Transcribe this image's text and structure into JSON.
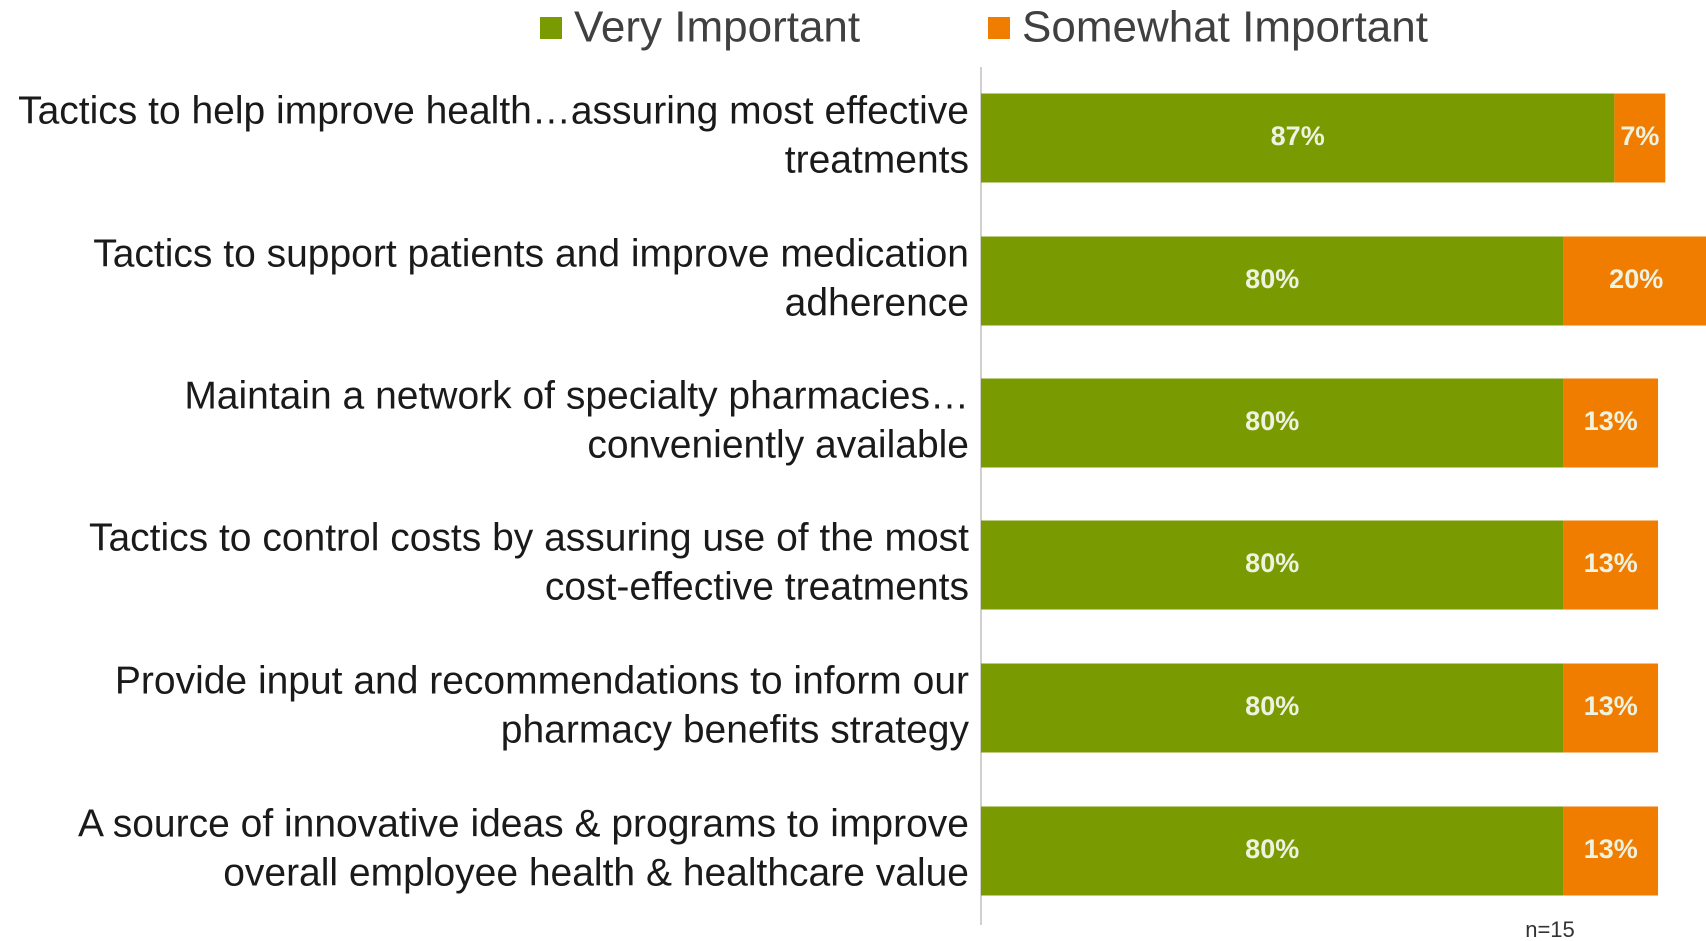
{
  "chart_data": {
    "type": "stacked-bar-horizontal",
    "categories": [
      "Tactics to help improve health…assuring most effective treatments",
      "Tactics to support patients and improve medication adherence",
      "Maintain a network of specialty pharmacies… conveniently available",
      "Tactics to control costs by assuring use of the most cost-effective treatments",
      "Provide input and recommendations to inform our pharmacy benefits strategy",
      "A source of innovative ideas & programs to improve overall employee health & healthcare value"
    ],
    "series": [
      {
        "name": "Very Important",
        "color": "#7a9a01",
        "values": [
          87,
          80,
          80,
          80,
          80,
          80
        ],
        "value_labels": [
          "87%",
          "80%",
          "80%",
          "80%",
          "80%",
          "80%"
        ]
      },
      {
        "name": "Somewhat Important",
        "color": "#f07c00",
        "values": [
          7,
          20,
          13,
          13,
          13,
          13
        ],
        "value_labels": [
          "7%",
          "20%",
          "13%",
          "13%",
          "13%",
          "13%"
        ]
      }
    ],
    "xlim": [
      0,
      100
    ],
    "legend": "top",
    "annotations": [
      "n=15"
    ]
  }
}
